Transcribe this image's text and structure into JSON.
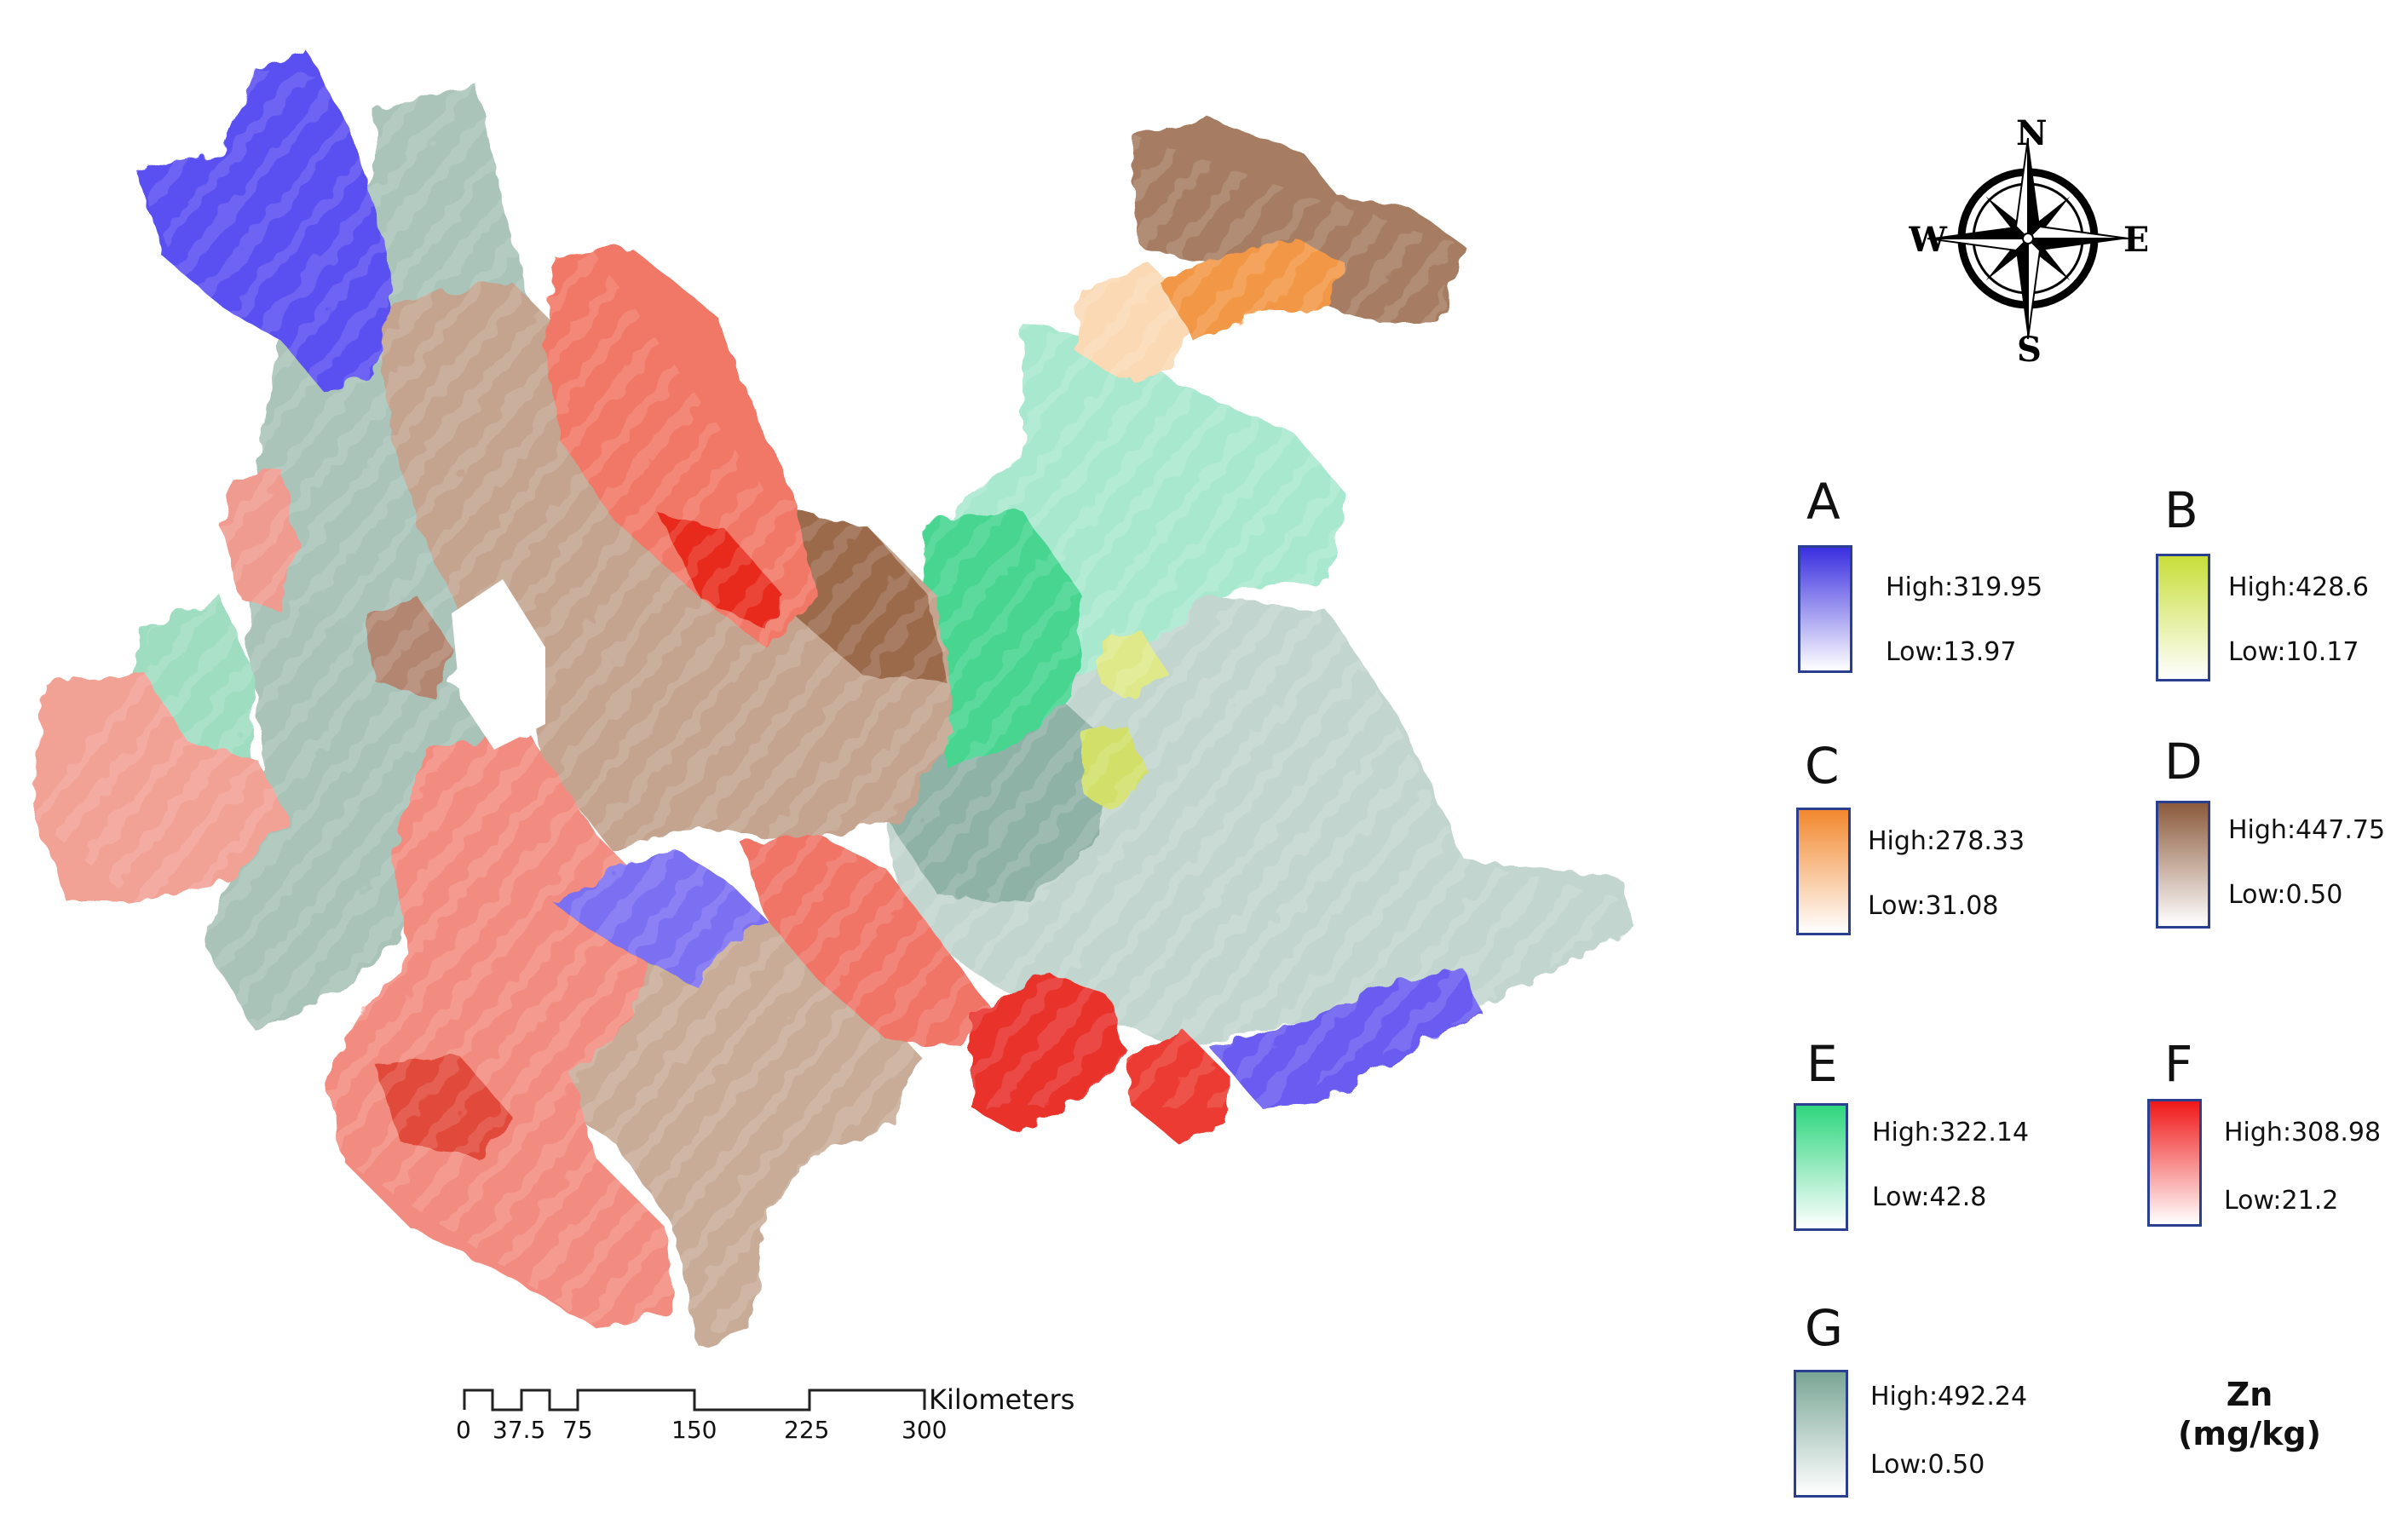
{
  "legend": {
    "title_line1": "Zn",
    "title_line2": "(mg/kg)",
    "items": [
      {
        "letter": "A",
        "high": "High:319.95",
        "low": "Low:13.97",
        "color": "#3a2fe0"
      },
      {
        "letter": "B",
        "high": "High:428.6",
        "low": "Low:10.17",
        "color": "#c8de3a"
      },
      {
        "letter": "C",
        "high": "High:278.33",
        "low": "Low:31.08",
        "color": "#f2882e"
      },
      {
        "letter": "D",
        "high": "High:447.75",
        "low": "Low:0.50",
        "color": "#8c5a3c"
      },
      {
        "letter": "E",
        "high": "High:322.14",
        "low": "Low:42.8",
        "color": "#2ed67e"
      },
      {
        "letter": "F",
        "high": "High:308.98",
        "low": "Low:21.2",
        "color": "#f01818"
      },
      {
        "letter": "G",
        "high": "High:492.24",
        "low": "Low:0.50",
        "color": "#7aa696"
      }
    ]
  },
  "compass": {
    "north": "N",
    "south": "S",
    "east": "E",
    "west": "W"
  },
  "scale_bar": {
    "unit": "Kilometers",
    "ticks": [
      "0",
      "37.5",
      "75",
      "150",
      "225",
      "300"
    ]
  }
}
